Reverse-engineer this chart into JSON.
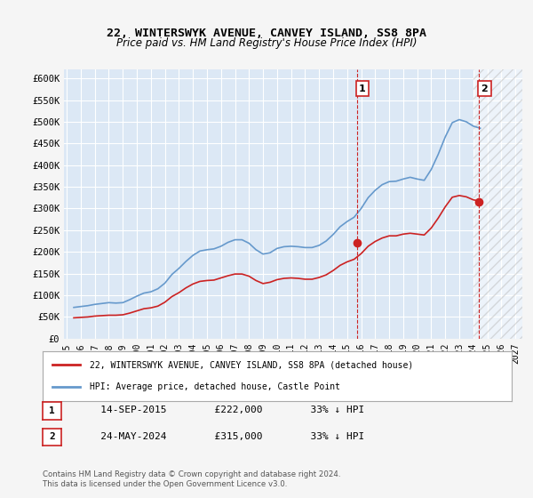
{
  "title": "22, WINTERSWYK AVENUE, CANVEY ISLAND, SS8 8PA",
  "subtitle": "Price paid vs. HM Land Registry's House Price Index (HPI)",
  "ylabel_ticks": [
    "£0",
    "£50K",
    "£100K",
    "£150K",
    "£200K",
    "£250K",
    "£300K",
    "£350K",
    "£400K",
    "£450K",
    "£500K",
    "£550K",
    "£600K"
  ],
  "ytick_values": [
    0,
    50000,
    100000,
    150000,
    200000,
    250000,
    300000,
    350000,
    400000,
    450000,
    500000,
    550000,
    600000
  ],
  "ylim": [
    0,
    620000
  ],
  "background_color": "#e8f0f8",
  "plot_bg_color": "#dce8f5",
  "hpi_color": "#6699cc",
  "price_color": "#cc2222",
  "marker1_date": 2015.7,
  "marker1_price": 222000,
  "marker2_date": 2024.4,
  "marker2_price": 315000,
  "legend_label_red": "22, WINTERSWYK AVENUE, CANVEY ISLAND, SS8 8PA (detached house)",
  "legend_label_blue": "HPI: Average price, detached house, Castle Point",
  "table_rows": [
    {
      "num": "1",
      "date": "14-SEP-2015",
      "price": "£222,000",
      "pct": "33% ↓ HPI"
    },
    {
      "num": "2",
      "date": "24-MAY-2024",
      "price": "£315,000",
      "pct": "33% ↓ HPI"
    }
  ],
  "footer": "Contains HM Land Registry data © Crown copyright and database right 2024.\nThis data is licensed under the Open Government Licence v3.0.",
  "hpi_data": {
    "years": [
      1995.5,
      1996.0,
      1996.5,
      1997.0,
      1997.5,
      1998.0,
      1998.5,
      1999.0,
      1999.5,
      2000.0,
      2000.5,
      2001.0,
      2001.5,
      2002.0,
      2002.5,
      2003.0,
      2003.5,
      2004.0,
      2004.5,
      2005.0,
      2005.5,
      2006.0,
      2006.5,
      2007.0,
      2007.5,
      2008.0,
      2008.5,
      2009.0,
      2009.5,
      2010.0,
      2010.5,
      2011.0,
      2011.5,
      2012.0,
      2012.5,
      2013.0,
      2013.5,
      2014.0,
      2014.5,
      2015.0,
      2015.5,
      2016.0,
      2016.5,
      2017.0,
      2017.5,
      2018.0,
      2018.5,
      2019.0,
      2019.5,
      2020.0,
      2020.5,
      2021.0,
      2021.5,
      2022.0,
      2022.5,
      2023.0,
      2023.5,
      2024.0,
      2024.5
    ],
    "values": [
      72000,
      74000,
      76000,
      79000,
      81000,
      83000,
      82000,
      83000,
      90000,
      98000,
      105000,
      108000,
      115000,
      128000,
      148000,
      162000,
      178000,
      192000,
      202000,
      205000,
      207000,
      213000,
      222000,
      228000,
      228000,
      220000,
      205000,
      195000,
      198000,
      208000,
      212000,
      213000,
      212000,
      210000,
      210000,
      215000,
      225000,
      240000,
      258000,
      270000,
      280000,
      300000,
      325000,
      342000,
      355000,
      362000,
      363000,
      368000,
      372000,
      368000,
      365000,
      390000,
      425000,
      465000,
      498000,
      505000,
      500000,
      490000,
      485000
    ]
  },
  "price_data": {
    "years": [
      1995.5,
      1996.0,
      1996.5,
      1997.0,
      1997.5,
      1998.0,
      1998.5,
      1999.0,
      1999.5,
      2000.0,
      2000.5,
      2001.0,
      2001.5,
      2002.0,
      2002.5,
      2003.0,
      2003.5,
      2004.0,
      2004.5,
      2005.0,
      2005.5,
      2006.0,
      2006.5,
      2007.0,
      2007.5,
      2008.0,
      2008.5,
      2009.0,
      2009.5,
      2010.0,
      2010.5,
      2011.0,
      2011.5,
      2012.0,
      2012.5,
      2013.0,
      2013.5,
      2014.0,
      2014.5,
      2015.0,
      2015.5,
      2016.0,
      2016.5,
      2017.0,
      2017.5,
      2018.0,
      2018.5,
      2019.0,
      2019.5,
      2020.0,
      2020.5,
      2021.0,
      2021.5,
      2022.0,
      2022.5,
      2023.0,
      2023.5,
      2024.0,
      2024.5
    ],
    "values": [
      48000,
      49000,
      50000,
      52000,
      53000,
      54000,
      54000,
      55000,
      59000,
      64000,
      69000,
      71000,
      75000,
      84000,
      97000,
      106000,
      117000,
      126000,
      132000,
      134000,
      135000,
      140000,
      145000,
      149000,
      149000,
      144000,
      134000,
      127000,
      130000,
      136000,
      139000,
      140000,
      139000,
      137000,
      137000,
      141000,
      147000,
      157000,
      169000,
      177000,
      183000,
      196000,
      213000,
      224000,
      232000,
      237000,
      237000,
      241000,
      243000,
      241000,
      239000,
      255000,
      278000,
      304000,
      326000,
      330000,
      327000,
      320000,
      317000
    ]
  },
  "xtick_years": [
    1995,
    1996,
    1997,
    1998,
    1999,
    2000,
    2001,
    2002,
    2003,
    2004,
    2005,
    2006,
    2007,
    2008,
    2009,
    2010,
    2011,
    2012,
    2013,
    2014,
    2015,
    2016,
    2017,
    2018,
    2019,
    2020,
    2021,
    2022,
    2023,
    2024,
    2025,
    2026,
    2027
  ],
  "xlim": [
    1994.8,
    2027.5
  ],
  "hatch_start": 2024.0,
  "hatch_end": 2027.5
}
